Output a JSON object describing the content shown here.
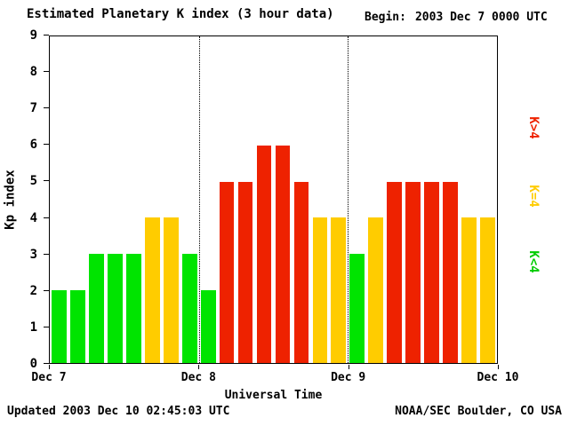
{
  "title": "Estimated Planetary K index (3 hour data)",
  "begin": {
    "label": "Begin:",
    "value": "2003 Dec 7 0000 UTC"
  },
  "footer": {
    "updated": "Updated 2003 Dec 10 02:45:03 UTC",
    "source": "NOAA/SEC Boulder, CO USA"
  },
  "chart_data": {
    "type": "bar",
    "title": "Estimated Planetary K index (3 hour data)",
    "xlabel": "Universal Time",
    "ylabel": "Kp index",
    "ylim": [
      0,
      9
    ],
    "y_ticks": [
      0,
      1,
      2,
      3,
      4,
      5,
      6,
      7,
      8,
      9
    ],
    "x_tick_labels": [
      "Dec 7",
      "Dec 8",
      "Dec 9",
      "Dec 10"
    ],
    "hours_per_bar": 3,
    "values": [
      2,
      2,
      3,
      3,
      3,
      4,
      4,
      3,
      2,
      5,
      5,
      6,
      6,
      5,
      4,
      4,
      3,
      4,
      5,
      5,
      5,
      5,
      4,
      4
    ],
    "bar_colors": {
      "below_4": "#00e400",
      "equal_4": "#ffcc00",
      "above_4": "#ee2200"
    },
    "legend": [
      {
        "label": "K>4",
        "color": "#ee2200"
      },
      {
        "label": "K=4",
        "color": "#ffcc00"
      },
      {
        "label": "K<4",
        "color": "#00cc00"
      }
    ],
    "legend_position": "right",
    "grid": "dotted vertical lines at day boundaries"
  }
}
